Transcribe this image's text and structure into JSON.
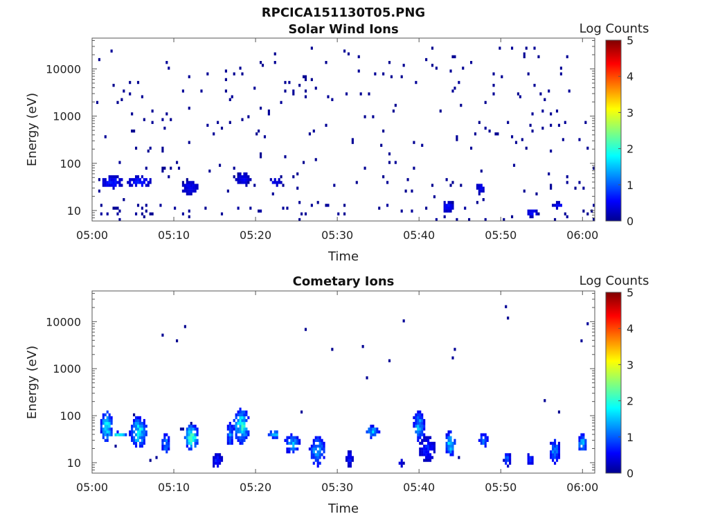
{
  "figure": {
    "title": "RPCICA151130T05.PNG"
  },
  "chart_data": [
    {
      "type": "heatmap",
      "title": "Solar Wind Ions",
      "xlabel": "Time",
      "ylabel": "Energy (eV)",
      "x_tick_labels": [
        "05:00",
        "05:10",
        "05:20",
        "05:30",
        "05:40",
        "05:50",
        "06:00"
      ],
      "x_tick_minutes": [
        0,
        10,
        20,
        30,
        40,
        50,
        60
      ],
      "xlim_minutes": [
        0,
        61.5
      ],
      "y_scale": "log",
      "y_tick_labels": [
        "10",
        "100",
        "1000",
        "10000"
      ],
      "y_tick_values": [
        10,
        100,
        1000,
        10000
      ],
      "ylim": [
        6,
        45000
      ],
      "colorbar": {
        "label": "Log Counts",
        "min": 0,
        "max": 5,
        "tick_labels": [
          "0",
          "1",
          "2",
          "3",
          "4",
          "5"
        ],
        "colormap": "jet"
      },
      "description_of_content": "Sparse noise counts (log value ~0) across all energies; denser bands near 30-60 eV and 6-12 eV",
      "clusters": [
        {
          "t": 2.5,
          "e": 40,
          "dt": 1.2,
          "loge": 0.12,
          "v": 0.7
        },
        {
          "t": 5.8,
          "e": 40,
          "dt": 1.4,
          "loge": 0.12,
          "v": 0.65
        },
        {
          "t": 12.0,
          "e": 30,
          "dt": 1.0,
          "loge": 0.15,
          "v": 0.55
        },
        {
          "t": 18.5,
          "e": 45,
          "dt": 0.8,
          "loge": 0.15,
          "v": 0.5
        },
        {
          "t": 22.5,
          "e": 40,
          "dt": 0.8,
          "loge": 0.08,
          "v": 0.55
        },
        {
          "t": 43.5,
          "e": 12,
          "dt": 0.8,
          "loge": 0.1,
          "v": 0.6
        },
        {
          "t": 47.5,
          "e": 30,
          "dt": 0.6,
          "loge": 0.12,
          "v": 0.5
        },
        {
          "t": 53.8,
          "e": 9,
          "dt": 0.8,
          "loge": 0.08,
          "v": 0.6
        },
        {
          "t": 57.0,
          "e": 13,
          "dt": 0.6,
          "loge": 0.06,
          "v": 0.6
        }
      ]
    },
    {
      "type": "heatmap",
      "title": "Cometary Ions",
      "xlabel": "Time",
      "ylabel": "Energy (eV)",
      "x_tick_labels": [
        "05:00",
        "05:10",
        "05:20",
        "05:30",
        "05:40",
        "05:50",
        "06:00"
      ],
      "x_tick_minutes": [
        0,
        10,
        20,
        30,
        40,
        50,
        60
      ],
      "xlim_minutes": [
        0,
        61.5
      ],
      "y_scale": "log",
      "y_tick_labels": [
        "10",
        "100",
        "1000",
        "10000"
      ],
      "y_tick_values": [
        10,
        100,
        1000,
        10000
      ],
      "ylim": [
        6,
        45000
      ],
      "colorbar": {
        "label": "Log Counts",
        "min": 0,
        "max": 5,
        "tick_labels": [
          "0",
          "1",
          "2",
          "3",
          "4",
          "5"
        ],
        "colormap": "jet"
      },
      "description_of_content": "Ion bursts between ~10 and ~300 eV with peaks up to log counts ~2.3 near 40 eV",
      "clusters": [
        {
          "t": 1.8,
          "e": 60,
          "dt": 0.7,
          "loge": 0.3,
          "v": 1.8
        },
        {
          "t": 3.2,
          "e": 40,
          "dt": 0.9,
          "loge": 0.05,
          "v": 2.3
        },
        {
          "t": 5.7,
          "e": 45,
          "dt": 1.0,
          "loge": 0.3,
          "v": 1.8
        },
        {
          "t": 9.0,
          "e": 25,
          "dt": 0.5,
          "loge": 0.2,
          "v": 1.4
        },
        {
          "t": 12.2,
          "e": 35,
          "dt": 0.8,
          "loge": 0.25,
          "v": 2.1
        },
        {
          "t": 15.3,
          "e": 11,
          "dt": 0.6,
          "loge": 0.15,
          "v": 0.7
        },
        {
          "t": 16.9,
          "e": 40,
          "dt": 0.4,
          "loge": 0.25,
          "v": 1.3
        },
        {
          "t": 18.3,
          "e": 60,
          "dt": 0.9,
          "loge": 0.35,
          "v": 1.9
        },
        {
          "t": 22.3,
          "e": 40,
          "dt": 0.7,
          "loge": 0.07,
          "v": 2.1
        },
        {
          "t": 24.5,
          "e": 25,
          "dt": 0.9,
          "loge": 0.2,
          "v": 1.4
        },
        {
          "t": 27.6,
          "e": 18,
          "dt": 0.9,
          "loge": 0.3,
          "v": 1.5
        },
        {
          "t": 31.5,
          "e": 12,
          "dt": 0.4,
          "loge": 0.15,
          "v": 0.7
        },
        {
          "t": 34.3,
          "e": 45,
          "dt": 0.8,
          "loge": 0.12,
          "v": 1.5
        },
        {
          "t": 37.8,
          "e": 10,
          "dt": 0.3,
          "loge": 0.1,
          "v": 0.5
        },
        {
          "t": 40.0,
          "e": 60,
          "dt": 0.7,
          "loge": 0.3,
          "v": 1.4
        },
        {
          "t": 41.0,
          "e": 20,
          "dt": 1.0,
          "loge": 0.25,
          "v": 0.7
        },
        {
          "t": 43.8,
          "e": 25,
          "dt": 0.6,
          "loge": 0.25,
          "v": 1.6
        },
        {
          "t": 47.9,
          "e": 30,
          "dt": 0.5,
          "loge": 0.15,
          "v": 1.4
        },
        {
          "t": 50.8,
          "e": 12,
          "dt": 0.4,
          "loge": 0.15,
          "v": 1.0
        },
        {
          "t": 53.6,
          "e": 12,
          "dt": 0.4,
          "loge": 0.12,
          "v": 1.0
        },
        {
          "t": 56.6,
          "e": 18,
          "dt": 0.6,
          "loge": 0.25,
          "v": 1.3
        },
        {
          "t": 60.0,
          "e": 25,
          "dt": 0.5,
          "loge": 0.2,
          "v": 1.6
        }
      ]
    }
  ]
}
